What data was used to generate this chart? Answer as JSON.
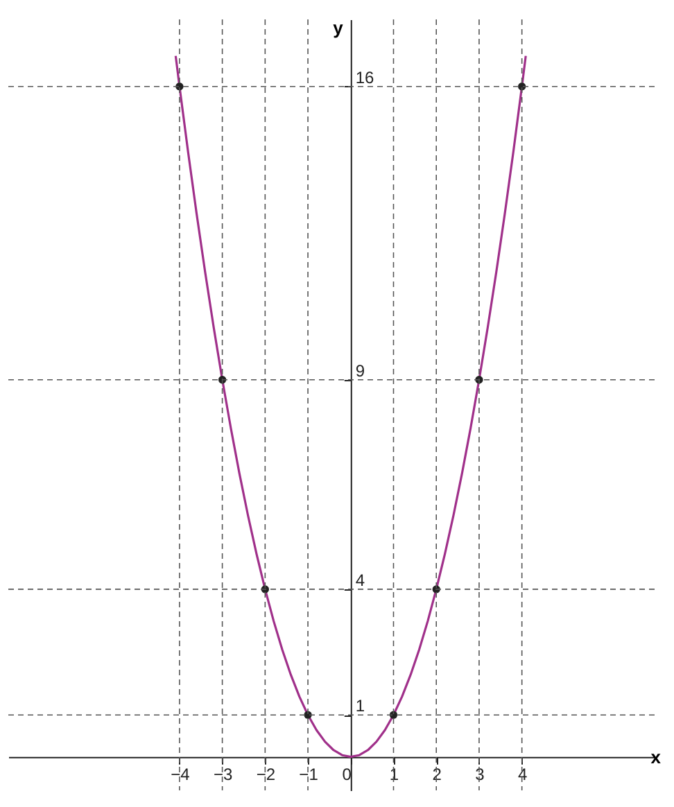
{
  "chart_data": {
    "type": "line",
    "xlabel": "x",
    "ylabel": "y",
    "xlim": [
      -8,
      7.1
    ],
    "ylim": [
      -0.8,
      17.6
    ],
    "xticks": [
      -4,
      -3,
      -2,
      -1,
      0,
      1,
      2,
      3,
      4
    ],
    "yticks": [
      1,
      4,
      9,
      16
    ],
    "grid": false,
    "ref_lines": [
      {
        "axis": "y",
        "value": 1,
        "color": "#555555",
        "line_style": "dashed"
      },
      {
        "axis": "y",
        "value": 4,
        "color": "#555555",
        "line_style": "dashed"
      },
      {
        "axis": "y",
        "value": 9,
        "color": "#555555",
        "line_style": "dashed"
      },
      {
        "axis": "y",
        "value": 16,
        "color": "#555555",
        "line_style": "dashed"
      },
      {
        "axis": "x",
        "value": -4,
        "color": "#555555",
        "line_style": "dashed"
      },
      {
        "axis": "x",
        "value": -3,
        "color": "#555555",
        "line_style": "dashed"
      },
      {
        "axis": "x",
        "value": -2,
        "color": "#555555",
        "line_style": "dashed"
      },
      {
        "axis": "x",
        "value": -1,
        "color": "#555555",
        "line_style": "dashed"
      },
      {
        "axis": "x",
        "value": 1,
        "color": "#555555",
        "line_style": "dashed"
      },
      {
        "axis": "x",
        "value": 2,
        "color": "#555555",
        "line_style": "dashed"
      },
      {
        "axis": "x",
        "value": 3,
        "color": "#555555",
        "line_style": "dashed"
      },
      {
        "axis": "x",
        "value": 4,
        "color": "#555555",
        "line_style": "dashed"
      }
    ],
    "series": [
      {
        "color": "#a0308a",
        "marker": "none",
        "line_style": "solid",
        "x": [
          -4.09,
          -4,
          -3.8,
          -3.6,
          -3.4,
          -3.2,
          -3,
          -2.8,
          -2.6,
          -2.4,
          -2.2,
          -2,
          -1.8,
          -1.6,
          -1.4,
          -1.2,
          -1,
          -0.8,
          -0.6,
          -0.4,
          -0.2,
          0,
          0.2,
          0.4,
          0.6,
          0.8,
          1,
          1.2,
          1.4,
          1.6,
          1.8,
          2,
          2.2,
          2.4,
          2.6,
          2.8,
          3,
          3.2,
          3.4,
          3.6,
          3.8,
          4,
          4.09
        ],
        "values": [
          16.73,
          16,
          14.44,
          12.96,
          11.56,
          10.24,
          9,
          7.84,
          6.76,
          5.76,
          4.84,
          4,
          3.24,
          2.56,
          1.96,
          1.44,
          1,
          0.64,
          0.36,
          0.16,
          0.04,
          0,
          0.04,
          0.16,
          0.36,
          0.64,
          1,
          1.44,
          1.96,
          2.56,
          3.24,
          4,
          4.84,
          5.76,
          6.76,
          7.84,
          9,
          10.24,
          11.56,
          12.96,
          14.44,
          16,
          16.73
        ]
      },
      {
        "type": "scatter",
        "color": "#222222",
        "marker": "circle",
        "x": [
          -4,
          -3,
          -2,
          -1,
          1,
          2,
          3,
          4
        ],
        "values": [
          16,
          9,
          4,
          1,
          1,
          4,
          9,
          16
        ]
      }
    ]
  }
}
